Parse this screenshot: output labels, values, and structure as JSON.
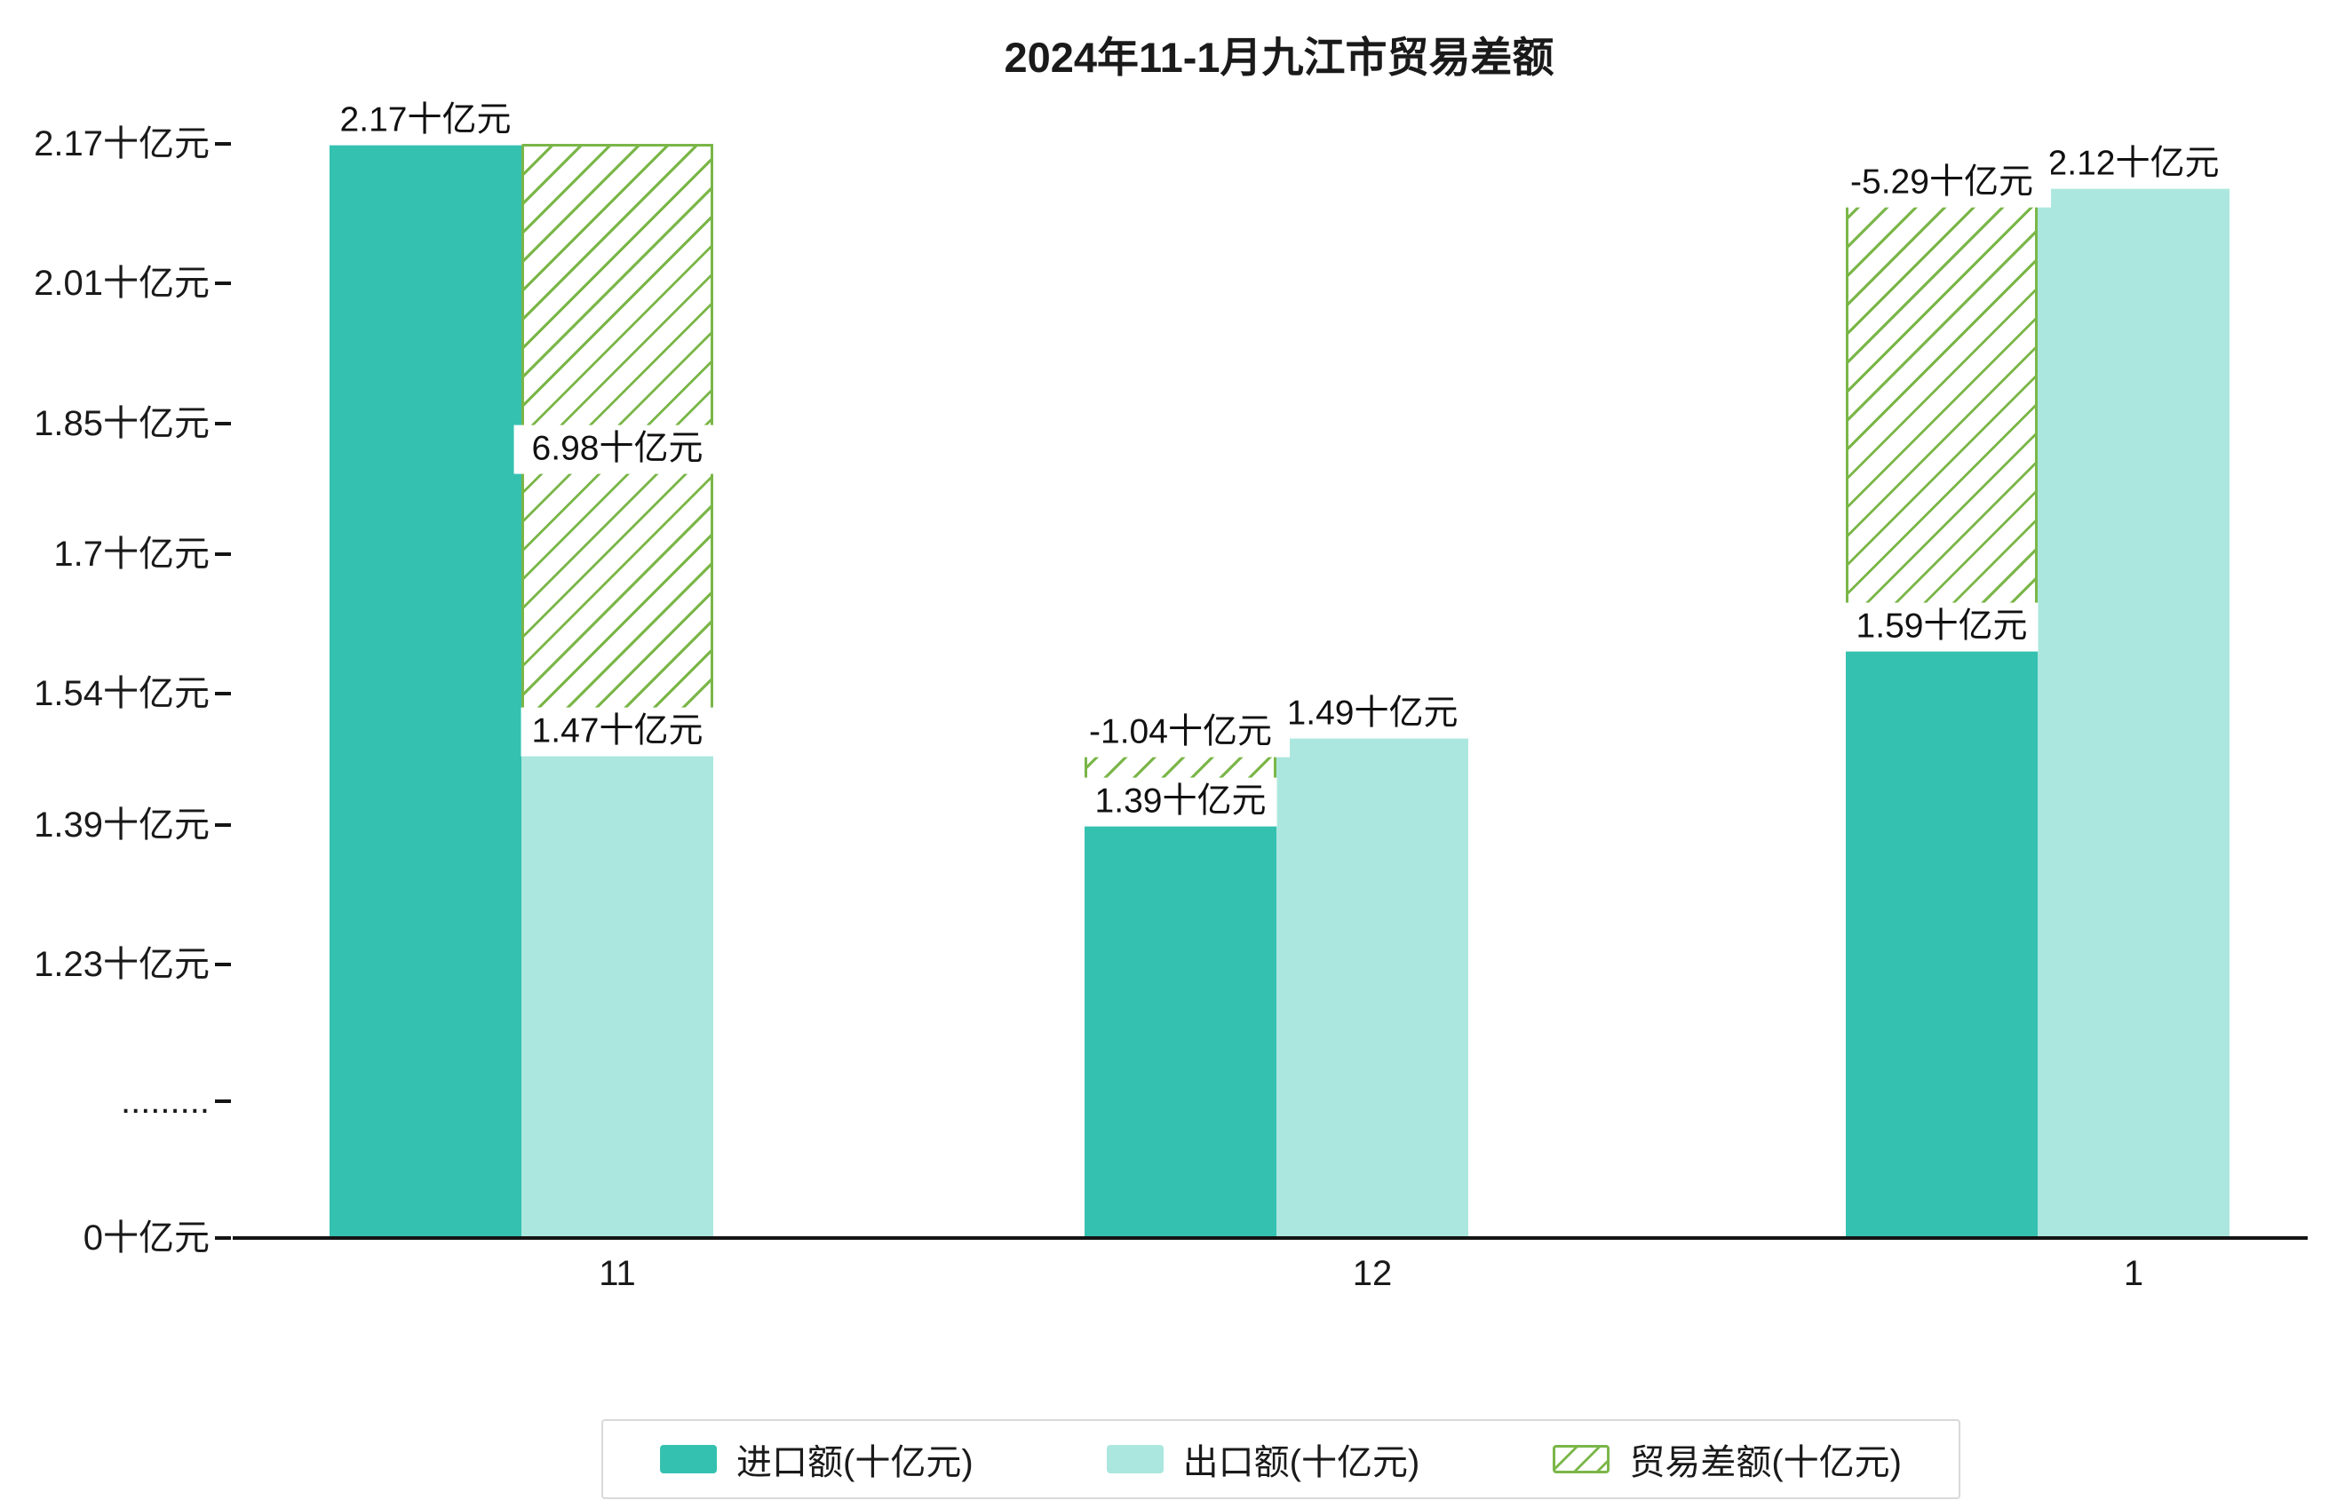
{
  "chart_data": {
    "type": "bar",
    "title": "2024年11-1月九江市贸易差额",
    "categories": [
      "11",
      "12",
      "1"
    ],
    "unit": "十亿元",
    "legend_position": "bottom",
    "grid": false,
    "colors": {
      "import": "#35c1b0",
      "export": "#abe7de",
      "trade_balance": "#7ab648",
      "legend_border": "#d9d9d9",
      "axis": "#141414"
    },
    "series": [
      {
        "name": "进口额(十亿元)",
        "type": "bar",
        "color": "#35c1b0",
        "values": [
          2.17,
          1.39,
          1.59
        ],
        "labels": [
          "2.17十亿元",
          "1.39十亿元",
          "1.59十亿元"
        ]
      },
      {
        "name": "出口额(十亿元)",
        "type": "bar",
        "color": "#abe7de",
        "values": [
          1.47,
          1.49,
          2.12
        ],
        "labels": [
          "1.47十亿元",
          "1.49十亿元",
          "2.12十亿元"
        ]
      },
      {
        "name": "贸易差额(十亿元)",
        "type": "bar-hatched",
        "color": "#7ab648",
        "values": [
          6.98,
          -1.04,
          -5.29
        ],
        "labels": [
          "6.98十亿元",
          "-1.04十亿元",
          "-5.29十亿元"
        ]
      }
    ],
    "y_axis": {
      "tick_labels": [
        "2.17十亿元",
        "2.01十亿元",
        "1.85十亿元",
        "1.7十亿元",
        "1.54十亿元",
        "1.39十亿元",
        "1.23十亿元",
        ".........",
        "0十亿元"
      ],
      "tick_values": [
        2.17,
        2.01,
        1.85,
        1.7,
        1.54,
        1.39,
        1.23,
        null,
        0
      ],
      "axis_break": true,
      "ylim": [
        0,
        2.17
      ]
    },
    "x_axis": {
      "tick_labels": [
        "11",
        "12",
        "1"
      ]
    }
  }
}
